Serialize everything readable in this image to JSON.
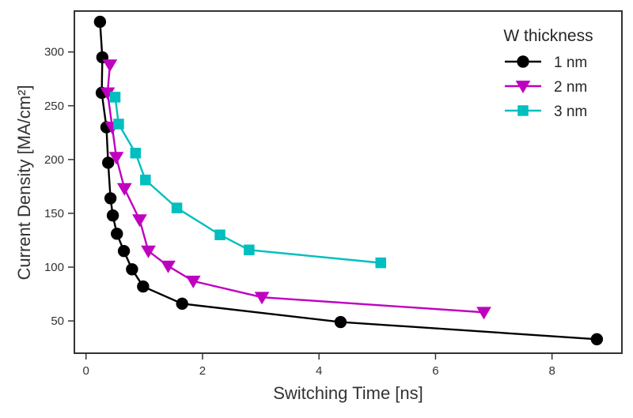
{
  "chart_data": {
    "type": "line",
    "title": "",
    "xlabel": "Switching Time [ns]",
    "ylabel": "Current Density [MA/cm²]",
    "xlim": [
      -0.2,
      9.2
    ],
    "ylim": [
      20,
      338
    ],
    "xticks": [
      0,
      2,
      4,
      6,
      8
    ],
    "xtick_labels": [
      "0",
      "2",
      "4",
      "6",
      "8"
    ],
    "yticks": [
      50,
      100,
      150,
      200,
      250,
      300
    ],
    "ytick_labels": [
      "50",
      "100",
      "150",
      "200",
      "250",
      "300"
    ],
    "grid": false,
    "legend": {
      "title": "W thickness",
      "placement": "top-right"
    },
    "series": [
      {
        "name": "1 nm",
        "color": "#000000",
        "marker": "circle",
        "x": [
          0.24,
          0.28,
          0.27,
          0.35,
          0.38,
          0.42,
          0.46,
          0.53,
          0.65,
          0.79,
          0.98,
          1.65,
          4.37,
          8.77
        ],
        "y": [
          328,
          295,
          262,
          230,
          197,
          164,
          148,
          131,
          115,
          98,
          82,
          66,
          49,
          33
        ]
      },
      {
        "name": "2 nm",
        "color": "#bf00bf",
        "marker": "triangle-down",
        "x": [
          0.41,
          0.37,
          0.45,
          0.52,
          0.66,
          0.92,
          1.07,
          1.41,
          1.84,
          3.02,
          6.83
        ],
        "y": [
          288,
          262,
          230,
          202,
          173,
          144,
          115,
          101,
          87,
          72,
          58
        ]
      },
      {
        "name": "3 nm",
        "color": "#00bfbf",
        "marker": "square",
        "x": [
          0.5,
          0.56,
          0.85,
          1.02,
          1.56,
          2.3,
          2.8,
          5.06
        ],
        "y": [
          258,
          233,
          206,
          181,
          155,
          130,
          116,
          104
        ]
      }
    ]
  }
}
